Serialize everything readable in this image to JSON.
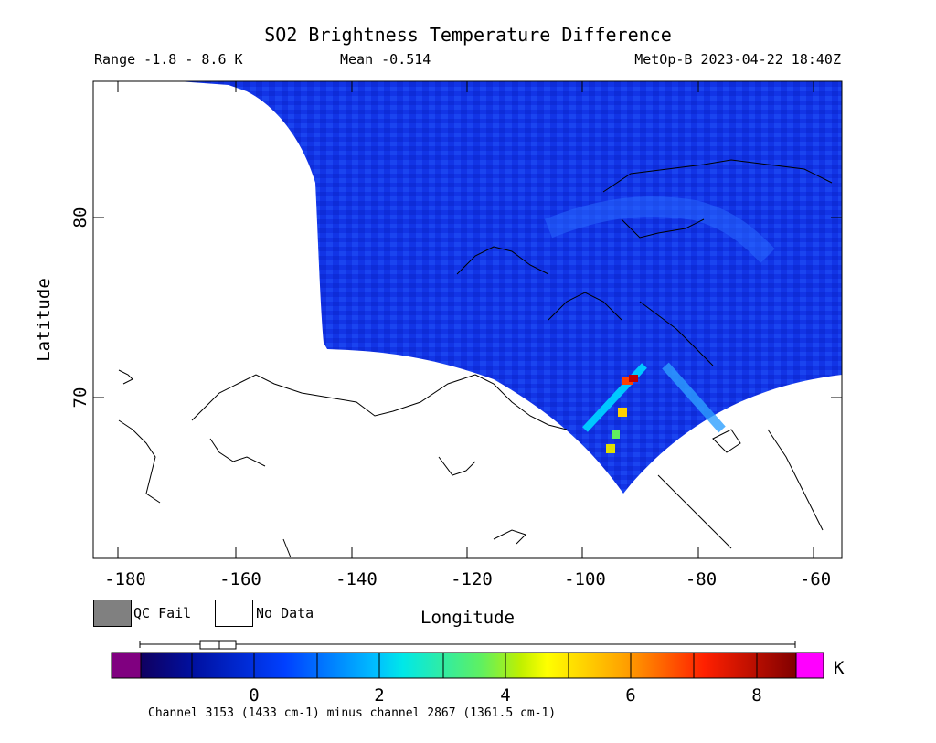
{
  "header": {
    "title": "SO2 Brightness Temperature Difference",
    "range": "Range -1.8 - 8.6 K",
    "mean": "Mean -0.514",
    "satellite_time": "MetOp-B 2023-04-22 18:40Z"
  },
  "axes": {
    "xlabel": "Longitude",
    "ylabel": "Latitude",
    "xticks": [
      "-180",
      "-160",
      "-140",
      "-120",
      "-100",
      "-80",
      "-60"
    ],
    "yticks": [
      "80",
      "70"
    ]
  },
  "legend": {
    "qc_fail": "QC Fail",
    "no_data": "No Data"
  },
  "colorbar": {
    "units": "K",
    "ticks": [
      "0",
      "2",
      "4",
      "6",
      "8"
    ]
  },
  "footer": {
    "channel_note": "Channel 3153 (1433 cm-1) minus channel 2867 (1361.5 cm-1)"
  },
  "colors": {
    "background_field": "#1030e0",
    "under_range": "#800080",
    "over_range": "#ff00ff",
    "qc_fail": "#808080"
  }
}
